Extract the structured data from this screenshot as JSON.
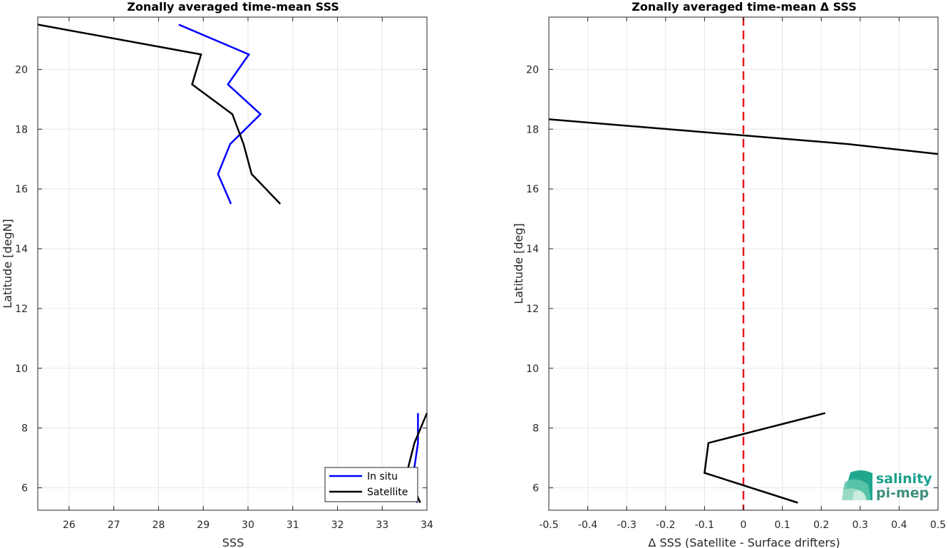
{
  "colors": {
    "insitu": "#0000ff",
    "satellite": "#000000",
    "zero_line": "#e31a1c",
    "grid": "#e6e6e6",
    "logo_top": "#1aa08c",
    "logo_bottom": "#3f8f7f"
  },
  "logo": {
    "line1": "salinity",
    "line2": "pi-mep"
  },
  "chart_data": [
    {
      "type": "line",
      "title": "Zonally averaged time-mean SSS",
      "xlabel": "SSS",
      "ylabel": "Latitude [degN]",
      "xlim": [
        25.3,
        34.0
      ],
      "ylim": [
        5.25,
        21.75
      ],
      "xticks": [
        "26",
        "27",
        "28",
        "29",
        "30",
        "31",
        "32",
        "33",
        "34"
      ],
      "yticks": [
        "6",
        "8",
        "10",
        "12",
        "14",
        "16",
        "18",
        "20"
      ],
      "grid": true,
      "legend": {
        "placement": "bottom-right",
        "entries": [
          "In situ",
          "Satellite"
        ]
      },
      "series": [
        {
          "name": "In situ",
          "color_key": "insitu",
          "segments": [
            [
              [
                28.45,
                21.5
              ],
              [
                30.02,
                20.5
              ],
              [
                29.55,
                19.5
              ],
              [
                30.28,
                18.5
              ],
              [
                29.6,
                17.5
              ],
              [
                29.33,
                16.5
              ],
              [
                29.62,
                15.5
              ]
            ],
            [
              [
                33.8,
                8.5
              ],
              [
                33.8,
                7.5
              ],
              [
                33.7,
                6.5
              ],
              [
                33.78,
                5.5
              ]
            ]
          ]
        },
        {
          "name": "Satellite",
          "color_key": "satellite",
          "segments": [
            [
              [
                25.3,
                21.5
              ],
              [
                28.95,
                20.5
              ],
              [
                28.75,
                19.5
              ],
              [
                29.65,
                18.5
              ],
              [
                29.9,
                17.5
              ],
              [
                30.08,
                16.5
              ],
              [
                30.72,
                15.5
              ]
            ],
            [
              [
                34.0,
                8.5
              ],
              [
                33.72,
                7.5
              ],
              [
                33.55,
                6.5
              ],
              [
                33.85,
                5.5
              ]
            ]
          ]
        }
      ]
    },
    {
      "type": "line",
      "title": "Zonally averaged time-mean Δ SSS",
      "xlabel": "Δ SSS (Satellite - Surface drifters)",
      "ylabel": "Latitude [deg]",
      "xlim": [
        -0.5,
        0.5
      ],
      "ylim": [
        5.25,
        21.75
      ],
      "xticks": [
        "-0.5",
        "-0.4",
        "-0.3",
        "-0.2",
        "-0.1",
        "0",
        "0.1",
        "0.2",
        "0.3",
        "0.4",
        "0.5"
      ],
      "yticks": [
        "6",
        "8",
        "10",
        "12",
        "14",
        "16",
        "18",
        "20"
      ],
      "grid": true,
      "reference_line": {
        "x": 0,
        "style": "dashed",
        "color_key": "zero_line"
      },
      "series": [
        {
          "color_key": "satellite",
          "segments": [
            [
              [
                -0.5,
                18.33
              ],
              [
                0.27,
                17.5
              ],
              [
                0.5,
                17.17
              ]
            ],
            [
              [
                0.21,
                8.5
              ],
              [
                -0.09,
                7.5
              ],
              [
                -0.1,
                6.5
              ],
              [
                0.14,
                5.5
              ]
            ]
          ]
        }
      ]
    }
  ]
}
